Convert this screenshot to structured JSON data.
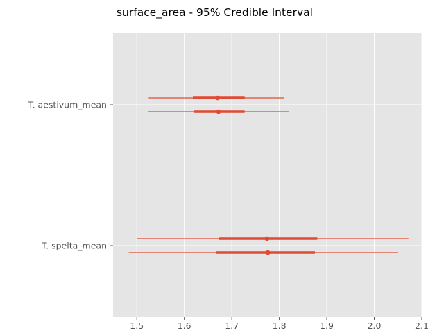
{
  "chart_data": {
    "type": "forest",
    "title": "surface_area - 95% Credible Interval",
    "xlabel": "",
    "ylabel": "",
    "xlim": [
      1.45,
      2.1
    ],
    "x_ticks": [
      "1.5",
      "1.6",
      "1.7",
      "1.8",
      "1.9",
      "2.0",
      "2.1"
    ],
    "grid": true,
    "background": "#E5E5E5",
    "grid_color": "#FFFFFF",
    "series_color": "#E24A33",
    "rows": [
      {
        "label": "T. aestivum_mean",
        "chains": [
          {
            "mean": 1.67,
            "hdi_low": 1.525,
            "hdi_high": 1.81,
            "iqr_low": 1.618,
            "iqr_high": 1.727
          },
          {
            "mean": 1.672,
            "hdi_low": 1.523,
            "hdi_high": 1.821,
            "iqr_low": 1.62,
            "iqr_high": 1.727
          }
        ]
      },
      {
        "label": "T. spelta_mean",
        "chains": [
          {
            "mean": 1.774,
            "hdi_low": 1.5,
            "hdi_high": 2.072,
            "iqr_low": 1.672,
            "iqr_high": 1.88
          },
          {
            "mean": 1.776,
            "hdi_low": 1.483,
            "hdi_high": 2.05,
            "iqr_low": 1.667,
            "iqr_high": 1.875
          }
        ]
      }
    ]
  }
}
